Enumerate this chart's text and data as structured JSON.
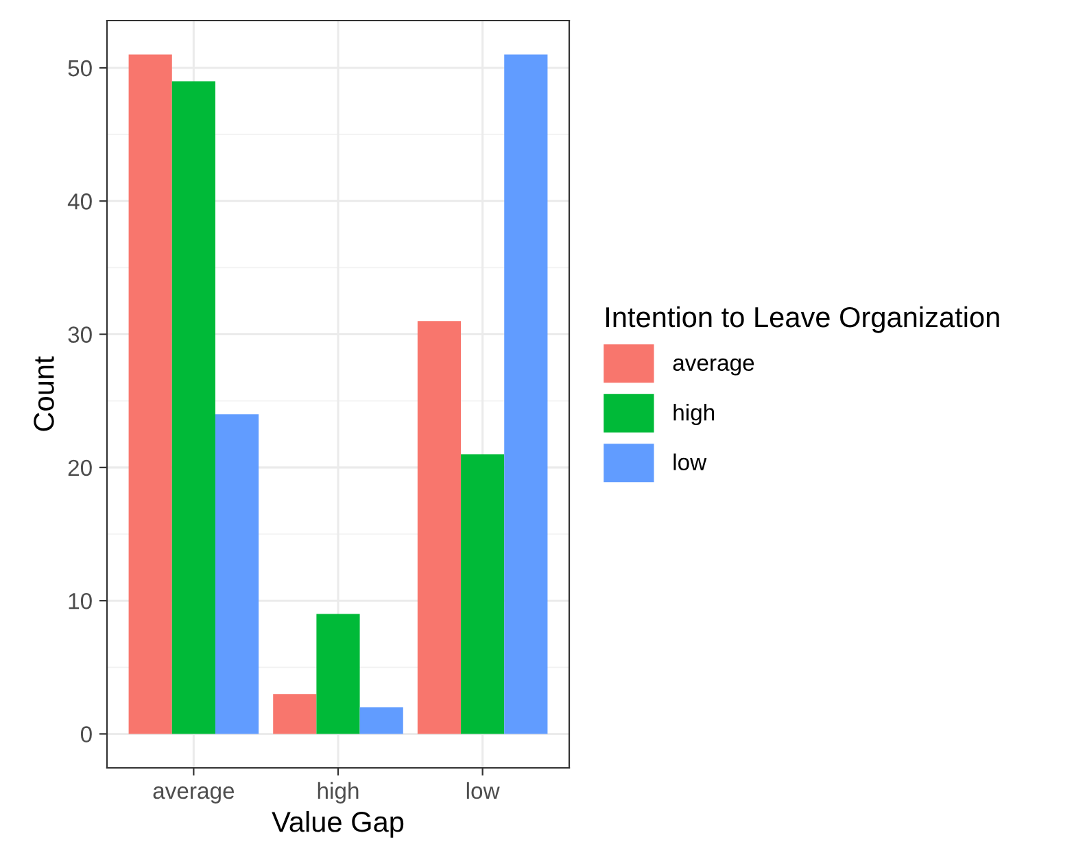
{
  "chart_data": {
    "type": "bar",
    "xlabel": "Value Gap",
    "ylabel": "Count",
    "legend_title": "Intention to Leave Organization",
    "categories": [
      "average",
      "high",
      "low"
    ],
    "series": [
      {
        "name": "average",
        "color": "#f8766d",
        "values": [
          51,
          3,
          31
        ]
      },
      {
        "name": "high",
        "color": "#00ba38",
        "values": [
          49,
          9,
          21
        ]
      },
      {
        "name": "low",
        "color": "#619cff",
        "values": [
          24,
          2,
          51
        ]
      }
    ],
    "ylim": [
      -2.55,
      53.55
    ],
    "yticks": [
      0,
      10,
      20,
      30,
      40,
      50
    ],
    "grid": true,
    "legend": "right"
  }
}
